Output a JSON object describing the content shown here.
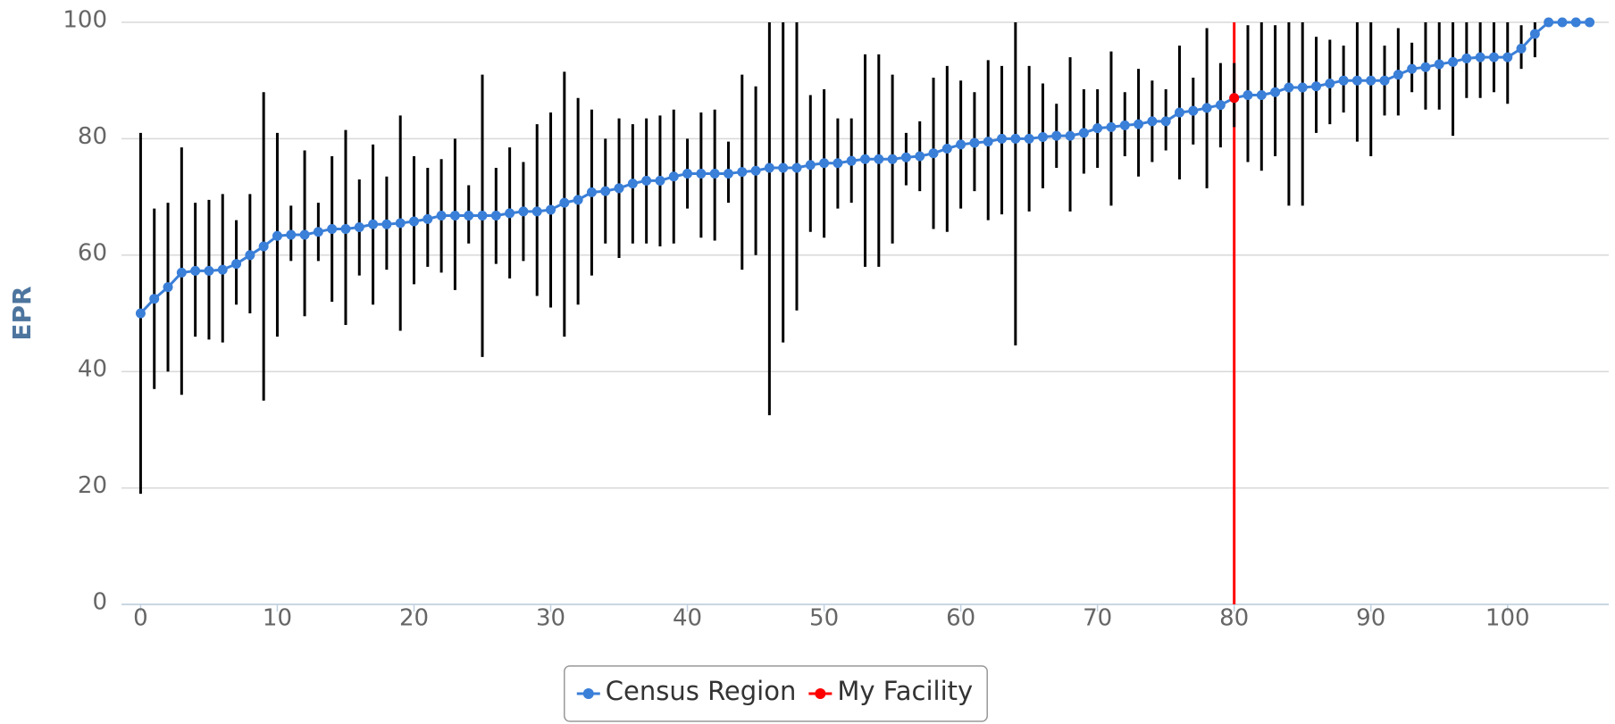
{
  "chart_data": {
    "type": "line",
    "y_label": "EPR",
    "xlim": [
      -1.4,
      107.4
    ],
    "xticks": [
      0,
      10,
      20,
      30,
      40,
      50,
      60,
      70,
      80,
      90,
      100
    ],
    "ylim": [
      0,
      100
    ],
    "yticks": [
      0,
      20,
      40,
      60,
      80,
      100
    ],
    "grid": true,
    "legend": "bottom",
    "plot_line": {
      "x": 80,
      "color": "#ff0000"
    },
    "series": [
      {
        "name": "Census Region",
        "color": "#3a7fd8",
        "error_color": "#000000",
        "x": [
          0,
          1,
          2,
          3,
          4,
          5,
          6,
          7,
          8,
          9,
          10,
          11,
          12,
          13,
          14,
          15,
          16,
          17,
          18,
          19,
          20,
          21,
          22,
          23,
          24,
          25,
          26,
          27,
          28,
          29,
          30,
          31,
          32,
          33,
          34,
          35,
          36,
          37,
          38,
          39,
          40,
          41,
          42,
          43,
          44,
          45,
          46,
          47,
          48,
          49,
          50,
          51,
          52,
          53,
          54,
          55,
          56,
          57,
          58,
          59,
          60,
          61,
          62,
          63,
          64,
          65,
          66,
          67,
          68,
          69,
          70,
          71,
          72,
          73,
          74,
          75,
          76,
          77,
          78,
          79,
          80,
          81,
          82,
          83,
          84,
          85,
          86,
          87,
          88,
          89,
          90,
          91,
          92,
          93,
          94,
          95,
          96,
          97,
          98,
          99,
          100,
          101,
          102,
          103,
          104,
          105,
          106
        ],
        "values": [
          50,
          52.5,
          54.5,
          57,
          57.3,
          57.3,
          57.5,
          58.5,
          60,
          61.5,
          63.3,
          63.5,
          63.5,
          64,
          64.5,
          64.5,
          64.8,
          65.3,
          65.3,
          65.5,
          65.8,
          66.2,
          66.8,
          66.8,
          66.8,
          66.8,
          66.8,
          67.2,
          67.5,
          67.5,
          67.8,
          69,
          69.5,
          70.8,
          71,
          71.5,
          72.3,
          72.8,
          72.8,
          73.5,
          74,
          74,
          74,
          74,
          74.3,
          74.5,
          75,
          75,
          75,
          75.5,
          75.8,
          75.8,
          76.2,
          76.5,
          76.5,
          76.5,
          76.8,
          77,
          77.5,
          78.3,
          79,
          79.3,
          79.5,
          80,
          80,
          80,
          80.3,
          80.5,
          80.5,
          81,
          81.8,
          82,
          82.3,
          82.5,
          83,
          83,
          84.5,
          84.8,
          85.3,
          85.8,
          87,
          87.5,
          87.5,
          88,
          88.8,
          88.8,
          89,
          89.5,
          90,
          90,
          90,
          90,
          91,
          92,
          92.3,
          92.8,
          93.2,
          93.8,
          94,
          94,
          94,
          95.5,
          98,
          100,
          100,
          100,
          100
        ],
        "error_low": [
          19,
          37,
          40,
          36,
          46,
          45.5,
          45,
          51.5,
          50,
          35,
          46,
          59,
          49.5,
          59,
          52,
          48,
          56.5,
          51.5,
          57.5,
          47,
          55,
          58,
          57,
          54,
          62,
          42.5,
          58.5,
          56,
          59,
          53,
          51,
          46,
          51.5,
          56.5,
          62,
          59.5,
          62,
          62,
          61.5,
          62,
          68,
          63,
          62.5,
          69,
          57.5,
          60,
          32.5,
          45,
          50.5,
          64,
          63,
          68,
          69,
          58,
          58,
          62,
          72,
          71,
          64.5,
          64,
          68,
          71,
          66,
          67,
          44.5,
          67.5,
          71.5,
          75,
          67.5,
          74,
          75,
          68.5,
          77,
          73.5,
          76,
          78,
          73,
          79,
          71.5,
          78.5,
          82,
          76,
          74.5,
          77,
          68.5,
          68.5,
          81,
          82.5,
          84.5,
          79.5,
          77,
          84,
          84,
          88,
          85,
          85,
          80.5,
          87,
          87,
          88,
          86,
          92,
          94,
          null,
          null,
          null,
          null
        ],
        "error_high": [
          81,
          68,
          69,
          78.5,
          69,
          69.5,
          70.5,
          66,
          70.5,
          88,
          81,
          68.5,
          78,
          69,
          77,
          81.5,
          73,
          79,
          73.5,
          84,
          77,
          75,
          76.5,
          80,
          72,
          91,
          75,
          78.5,
          76,
          82.5,
          84.5,
          91.5,
          87,
          85,
          80,
          83.5,
          82.5,
          83.5,
          84,
          85,
          80,
          84.5,
          85,
          79.5,
          91,
          89,
          100,
          100,
          100,
          87.5,
          88.5,
          83.5,
          83.5,
          94.5,
          94.5,
          91,
          81,
          83,
          90.5,
          92.5,
          90,
          88,
          93.5,
          92.5,
          100,
          92.5,
          89.5,
          86,
          94,
          88.5,
          88.5,
          95,
          88,
          92,
          90,
          88.5,
          96,
          90.5,
          99,
          93,
          93,
          99.5,
          100,
          99.5,
          100,
          100,
          97.5,
          97,
          96,
          100,
          100,
          96,
          99,
          96.5,
          100,
          100,
          100,
          100,
          100,
          100,
          100,
          99.5,
          100,
          null,
          null,
          null,
          null
        ]
      },
      {
        "name": "My Facility",
        "color": "#ff0000",
        "x": [
          80
        ],
        "values": [
          87
        ]
      }
    ]
  }
}
